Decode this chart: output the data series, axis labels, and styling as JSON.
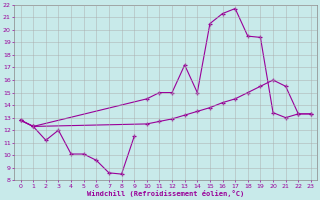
{
  "background_color": "#c8eaea",
  "grid_color": "#aaaaaa",
  "line_color": "#990099",
  "xlabel": "Windchill (Refroidissement éolien,°C)",
  "xlabel_color": "#990099",
  "xlim": [
    -0.5,
    23.5
  ],
  "ylim": [
    8,
    22
  ],
  "yticks": [
    8,
    9,
    10,
    11,
    12,
    13,
    14,
    15,
    16,
    17,
    18,
    19,
    20,
    21,
    22
  ],
  "xticks": [
    0,
    1,
    2,
    3,
    4,
    5,
    6,
    7,
    8,
    9,
    10,
    11,
    12,
    13,
    14,
    15,
    16,
    17,
    18,
    19,
    20,
    21,
    22,
    23
  ],
  "line1_x": [
    0,
    1,
    2,
    3,
    4,
    5,
    6,
    7,
    8,
    9
  ],
  "line1_y": [
    12.8,
    12.3,
    11.2,
    12.0,
    10.1,
    10.1,
    9.6,
    8.6,
    8.5,
    11.5
  ],
  "line2_x": [
    0,
    1,
    10,
    11,
    12,
    13,
    14,
    15,
    16,
    17,
    18,
    19,
    20,
    21,
    22,
    23
  ],
  "line2_y": [
    12.8,
    12.3,
    14.5,
    15.0,
    15.0,
    17.2,
    15.0,
    20.5,
    21.3,
    21.7,
    19.5,
    19.4,
    13.4,
    13.0,
    13.3,
    13.3
  ],
  "line3_x": [
    0,
    1,
    10,
    11,
    12,
    13,
    14,
    15,
    16,
    17,
    18,
    19,
    20,
    21,
    22,
    23
  ],
  "line3_y": [
    12.8,
    12.3,
    12.5,
    12.7,
    12.9,
    13.2,
    13.5,
    13.8,
    14.2,
    14.5,
    15.0,
    15.5,
    16.0,
    15.5,
    13.3,
    13.3
  ]
}
